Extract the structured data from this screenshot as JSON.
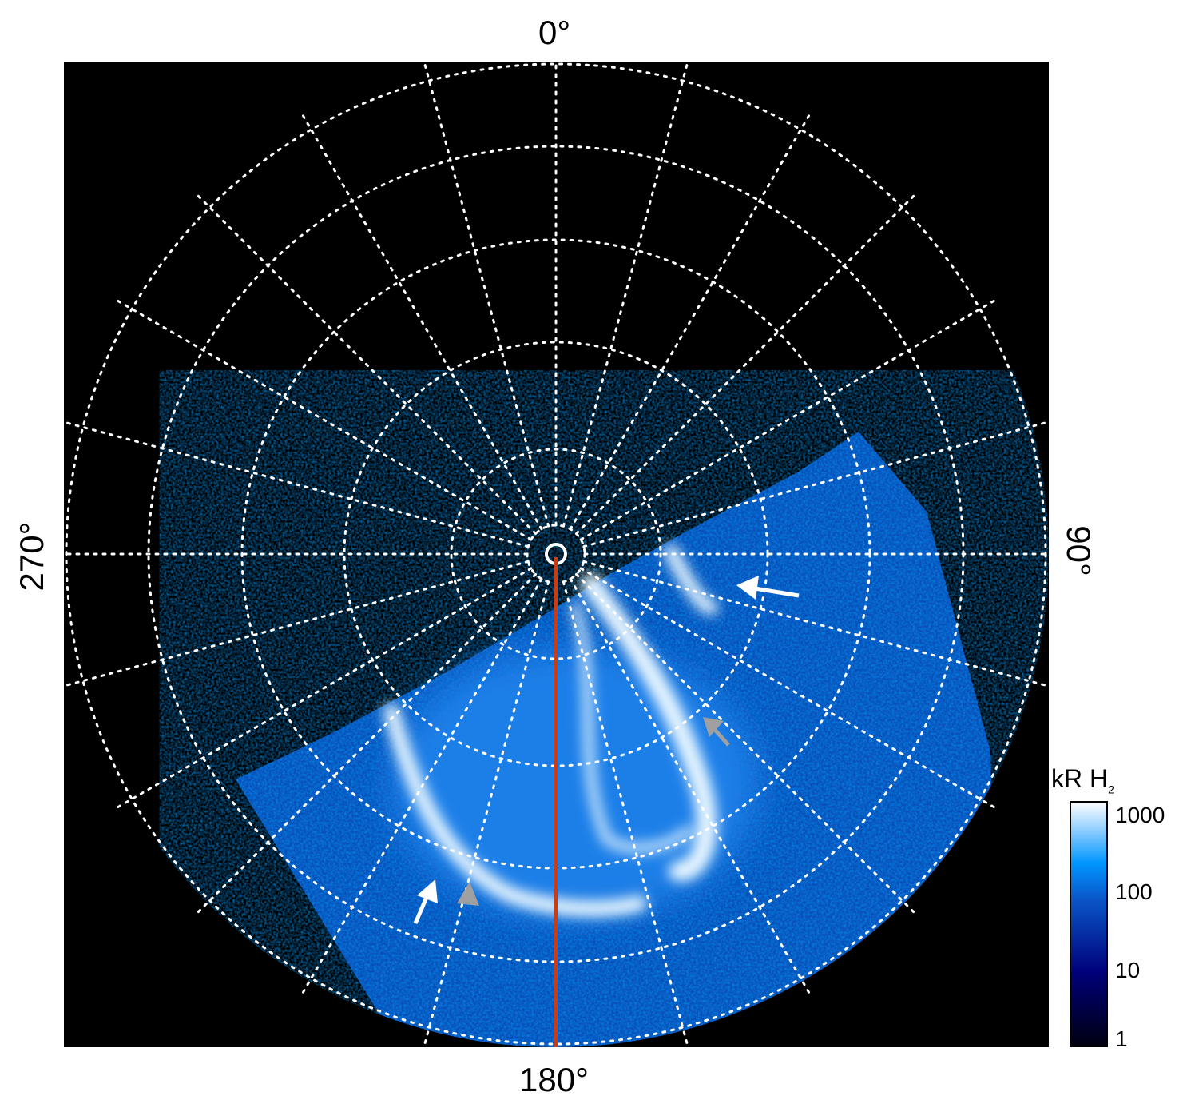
{
  "labels": {
    "top": "0°",
    "right": "90°",
    "bottom": "180°",
    "left": "270°"
  },
  "colorbar": {
    "title": "kR H",
    "title_sub": "2",
    "scale": "log",
    "range": [
      1,
      1000
    ],
    "ticks": [
      "1000",
      "100",
      "10",
      "1"
    ],
    "colors": [
      "#000010",
      "#00007a",
      "#0a55c8",
      "#0096ff",
      "#9fd4ff",
      "#ffffff"
    ]
  },
  "grid": {
    "longitude_step_deg": 15,
    "style": "dotted",
    "color": "#ffffff"
  },
  "meridian_line_color": "#d03a10",
  "arrows": [
    {
      "color": "#ffffff"
    },
    {
      "color": "#a0a0a0"
    },
    {
      "color": "#ffffff"
    },
    {
      "color": "#a0a0a0"
    }
  ]
}
